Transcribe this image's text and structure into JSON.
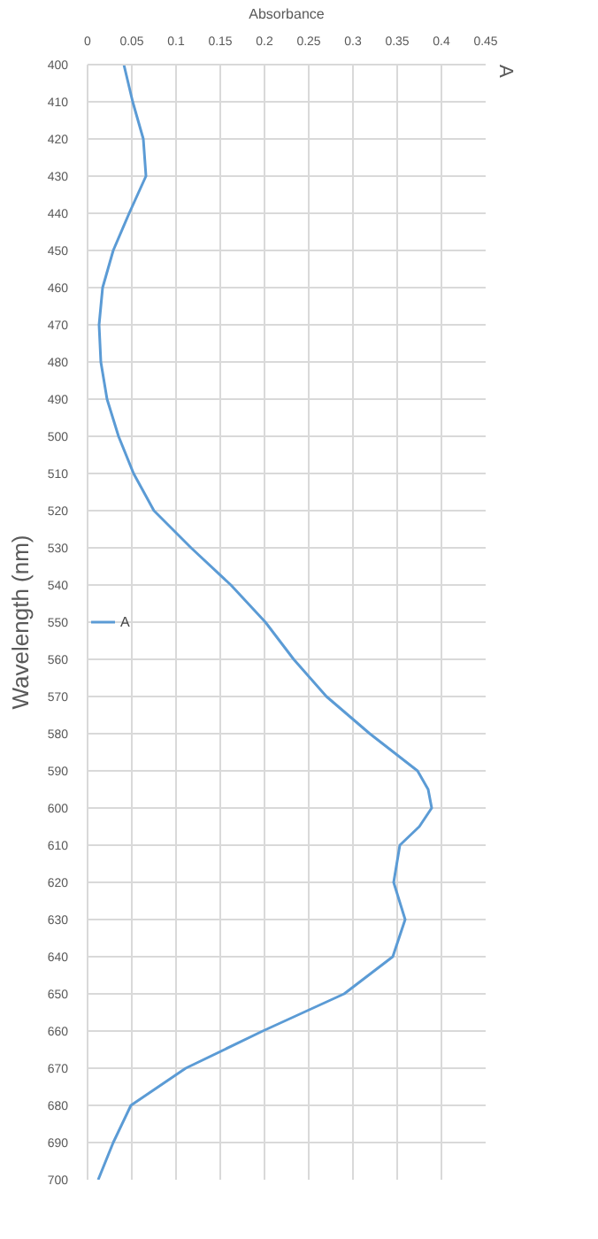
{
  "chart_data": {
    "type": "line",
    "title": "A",
    "xlabel": "Absorbance",
    "ylabel": "Wavelength (nm)",
    "series": [
      {
        "name": "A",
        "color": "#5b9bd5",
        "x": [
          0.041,
          0.051,
          0.063,
          0.066,
          0.047,
          0.029,
          0.017,
          0.013,
          0.015,
          0.022,
          0.035,
          0.052,
          0.075,
          0.117,
          0.162,
          0.201,
          0.233,
          0.27,
          0.319,
          0.373,
          0.385,
          0.389,
          0.375,
          0.353,
          0.346,
          0.359,
          0.345,
          0.29,
          0.198,
          0.111,
          0.049,
          0.029,
          0.012
        ],
        "values": [
          400,
          410,
          420,
          430,
          440,
          450,
          460,
          470,
          480,
          490,
          500,
          510,
          520,
          530,
          540,
          550,
          560,
          570,
          580,
          590,
          595,
          600,
          605,
          610,
          620,
          630,
          640,
          650,
          660,
          670,
          680,
          690,
          700
        ]
      }
    ],
    "xlim": [
      0,
      0.45
    ],
    "xticks": [
      0,
      0.05,
      0.1,
      0.15,
      0.2,
      0.25,
      0.3,
      0.35,
      0.4,
      0.45
    ],
    "ylim": [
      700,
      400
    ],
    "yticks": [
      400,
      410,
      420,
      430,
      440,
      450,
      460,
      470,
      480,
      490,
      500,
      510,
      520,
      530,
      540,
      550,
      560,
      570,
      580,
      590,
      600,
      610,
      620,
      630,
      640,
      650,
      660,
      670,
      680,
      690,
      700
    ],
    "grid": true,
    "legend": "left",
    "line_style": "solid",
    "marker": "none"
  }
}
